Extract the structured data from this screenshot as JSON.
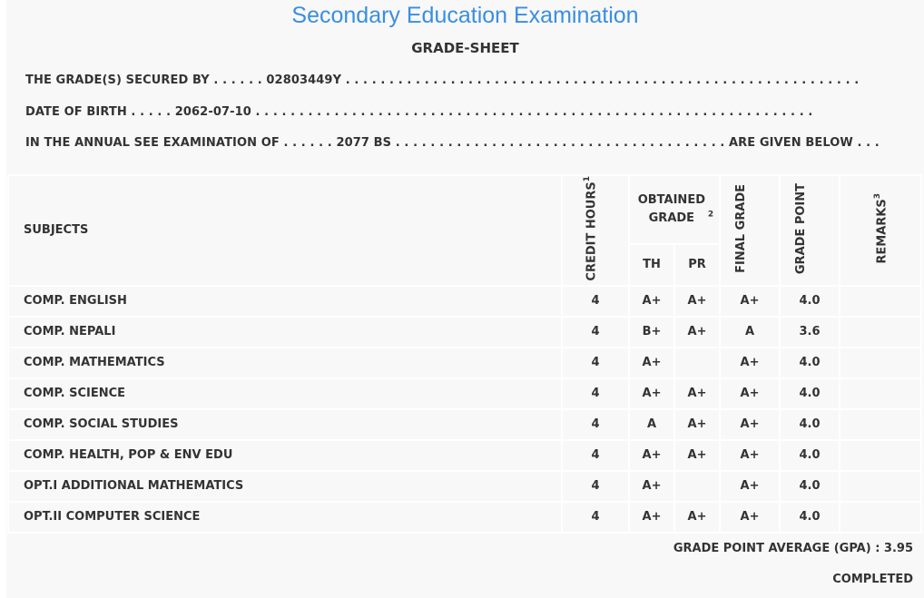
{
  "header": {
    "title": "Secondary Education Examination",
    "subtitle": "GRADE-SHEET"
  },
  "info": {
    "secured_by": "THE GRADE(S) SECURED BY . . . . . . 02803449Y . . . . . . . . . . . . . . . . . . . . . . . . . . . . . . . . . . . . . . . . . . . . . . . . . . . . . . . . . . .",
    "dob": "DATE OF BIRTH . . . . . 2062-07-10 . . . . . . . . . . . . . . . . . . . . . . . . . . . . . . . . . . . . . . . . . . . . . . . . . . . . . . . . . . . . . . . .",
    "exam": "IN THE ANNUAL SEE EXAMINATION OF . . . . . . 2077 BS . . . . . . . . . . . . . . . . . . . . . . . . . . . . . . . . . . . . . . ARE GIVEN BELOW . . ."
  },
  "table": {
    "headers": {
      "subjects": "SUBJECTS",
      "credit_hours": "CREDIT HOURS",
      "credit_sup": "1",
      "obtained_grade": "OBTAINED GRADE",
      "obtained_sup": "2",
      "th": "TH",
      "pr": "PR",
      "final_grade": "FINAL GRADE",
      "grade_point": "GRADE POINT",
      "remarks": "REMARKS",
      "remarks_sup": "3"
    },
    "rows": [
      {
        "subject": "COMP. ENGLISH",
        "credit": "4",
        "th": "A+",
        "pr": "A+",
        "final": "A+",
        "gp": "4.0",
        "remarks": ""
      },
      {
        "subject": "COMP. NEPALI",
        "credit": "4",
        "th": "B+",
        "pr": "A+",
        "final": "A",
        "gp": "3.6",
        "remarks": ""
      },
      {
        "subject": "COMP. MATHEMATICS",
        "credit": "4",
        "th": "A+",
        "pr": "",
        "final": "A+",
        "gp": "4.0",
        "remarks": ""
      },
      {
        "subject": "COMP. SCIENCE",
        "credit": "4",
        "th": "A+",
        "pr": "A+",
        "final": "A+",
        "gp": "4.0",
        "remarks": ""
      },
      {
        "subject": "COMP. SOCIAL STUDIES",
        "credit": "4",
        "th": "A",
        "pr": "A+",
        "final": "A+",
        "gp": "4.0",
        "remarks": ""
      },
      {
        "subject": "COMP. HEALTH, POP & ENV EDU",
        "credit": "4",
        "th": "A+",
        "pr": "A+",
        "final": "A+",
        "gp": "4.0",
        "remarks": ""
      },
      {
        "subject": "OPT.I ADDITIONAL MATHEMATICS",
        "credit": "4",
        "th": "A+",
        "pr": "",
        "final": "A+",
        "gp": "4.0",
        "remarks": ""
      },
      {
        "subject": "OPT.II COMPUTER SCIENCE",
        "credit": "4",
        "th": "A+",
        "pr": "A+",
        "final": "A+",
        "gp": "4.0",
        "remarks": ""
      }
    ]
  },
  "footer": {
    "gpa": "GRADE POINT AVERAGE (GPA) : 3.95",
    "status": "COMPLETED"
  },
  "colors": {
    "title": "#3a8ee0",
    "background": "#f8f8f8",
    "text": "#333333"
  }
}
